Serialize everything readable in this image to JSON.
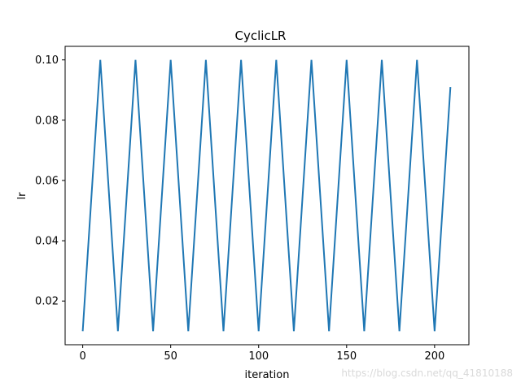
{
  "chart_data": {
    "type": "line",
    "title": "CyclicLR",
    "xlabel": "iteration",
    "ylabel": "lr",
    "xlim": [
      -10,
      219.5
    ],
    "ylim": [
      0.0055,
      0.1045
    ],
    "xticks": [
      0,
      50,
      100,
      150,
      200
    ],
    "xtick_labels": [
      "0",
      "50",
      "100",
      "150",
      "200"
    ],
    "yticks": [
      0.02,
      0.04,
      0.06,
      0.08,
      0.1
    ],
    "ytick_labels": [
      "0.02",
      "0.04",
      "0.06",
      "0.08",
      "0.10"
    ],
    "grid": false,
    "series": [
      {
        "color": "#1f77b4",
        "x": [
          0,
          10,
          20,
          30,
          40,
          50,
          60,
          70,
          80,
          90,
          100,
          110,
          120,
          130,
          140,
          150,
          160,
          170,
          180,
          190,
          200,
          209
        ],
        "y": [
          0.01,
          0.1,
          0.01,
          0.1,
          0.01,
          0.1,
          0.01,
          0.1,
          0.01,
          0.1,
          0.01,
          0.1,
          0.01,
          0.1,
          0.01,
          0.1,
          0.01,
          0.1,
          0.01,
          0.1,
          0.01,
          0.091
        ]
      }
    ]
  },
  "watermark": {
    "text": "https://blog.csdn.net/qq_41810188"
  }
}
